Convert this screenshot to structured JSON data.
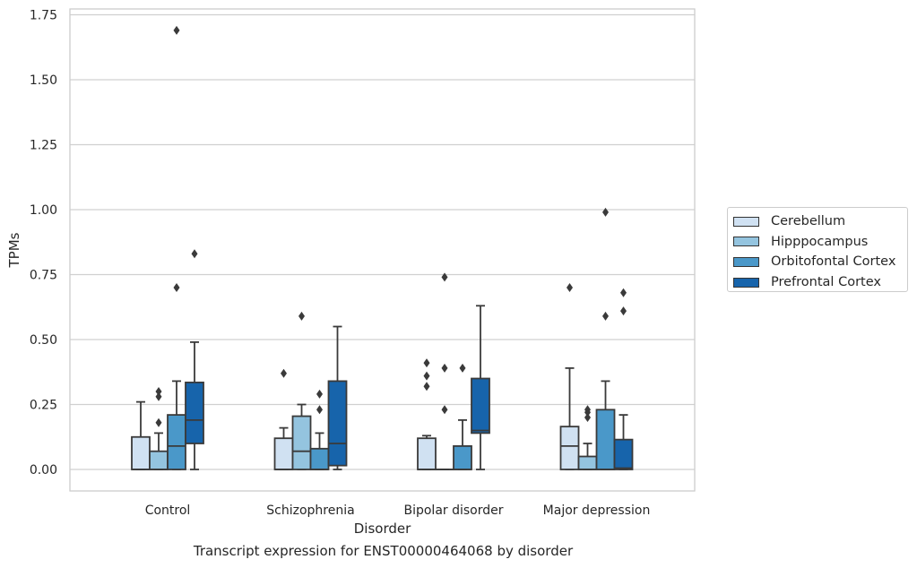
{
  "chart_data": {
    "type": "box",
    "title": "",
    "caption": "Transcript expression for ENST00000464068 by disorder",
    "xlabel": "Disorder",
    "ylabel": "TPMs",
    "ylim": [
      -0.08,
      1.77
    ],
    "yticks": [
      0.0,
      0.25,
      0.5,
      0.75,
      1.0,
      1.25,
      1.5,
      1.75
    ],
    "ytick_labels": [
      "0.00",
      "0.25",
      "0.50",
      "0.75",
      "1.00",
      "1.25",
      "1.50",
      "1.75"
    ],
    "grid": "horizontal",
    "legend_position": "right",
    "categories": [
      "Control",
      "Schizophrenia",
      "Bipolar disorder",
      "Major depression"
    ],
    "series": [
      {
        "name": "Cerebellum",
        "color": "#d0e1f2",
        "boxes": [
          {
            "min": 0.0,
            "q1": 0.0,
            "median": 0.0,
            "q3": 0.125,
            "max": 0.26,
            "outliers": []
          },
          {
            "min": 0.0,
            "q1": 0.0,
            "median": 0.0,
            "q3": 0.12,
            "max": 0.16,
            "outliers": [
              0.37
            ]
          },
          {
            "min": 0.0,
            "q1": 0.0,
            "median": 0.0,
            "q3": 0.12,
            "max": 0.13,
            "outliers": [
              0.32,
              0.36,
              0.41
            ]
          },
          {
            "min": 0.0,
            "q1": 0.0,
            "median": 0.09,
            "q3": 0.165,
            "max": 0.39,
            "outliers": [
              0.7
            ]
          }
        ]
      },
      {
        "name": "Hipppocampus",
        "color": "#94c4df",
        "boxes": [
          {
            "min": 0.0,
            "q1": 0.0,
            "median": 0.0,
            "q3": 0.07,
            "max": 0.14,
            "outliers": [
              0.18,
              0.28,
              0.3
            ]
          },
          {
            "min": 0.0,
            "q1": 0.0,
            "median": 0.07,
            "q3": 0.205,
            "max": 0.25,
            "outliers": [
              0.59
            ]
          },
          {
            "min": 0.0,
            "q1": 0.0,
            "median": 0.0,
            "q3": 0.0,
            "max": 0.0,
            "outliers": [
              0.23,
              0.39,
              0.74
            ]
          },
          {
            "min": 0.0,
            "q1": 0.0,
            "median": 0.0,
            "q3": 0.05,
            "max": 0.1,
            "outliers": [
              0.2,
              0.22,
              0.23
            ]
          }
        ]
      },
      {
        "name": "Orbitofontal Cortex",
        "color": "#4a98c9",
        "boxes": [
          {
            "min": 0.0,
            "q1": 0.0,
            "median": 0.09,
            "q3": 0.21,
            "max": 0.34,
            "outliers": [
              0.7,
              1.69
            ]
          },
          {
            "min": 0.0,
            "q1": 0.0,
            "median": 0.0,
            "q3": 0.08,
            "max": 0.14,
            "outliers": [
              0.23,
              0.29
            ]
          },
          {
            "min": 0.0,
            "q1": 0.0,
            "median": 0.0,
            "q3": 0.09,
            "max": 0.19,
            "outliers": [
              0.39
            ]
          },
          {
            "min": 0.0,
            "q1": 0.0,
            "median": 0.0,
            "q3": 0.23,
            "max": 0.34,
            "outliers": [
              0.59,
              0.99
            ]
          }
        ]
      },
      {
        "name": "Prefrontal Cortex",
        "color": "#1764ab",
        "boxes": [
          {
            "min": 0.0,
            "q1": 0.1,
            "median": 0.19,
            "q3": 0.335,
            "max": 0.49,
            "outliers": [
              0.83
            ]
          },
          {
            "min": 0.0,
            "q1": 0.015,
            "median": 0.1,
            "q3": 0.34,
            "max": 0.55,
            "outliers": []
          },
          {
            "min": 0.0,
            "q1": 0.14,
            "median": 0.15,
            "q3": 0.35,
            "max": 0.63,
            "outliers": []
          },
          {
            "min": 0.0,
            "q1": 0.0,
            "median": 0.005,
            "q3": 0.115,
            "max": 0.21,
            "outliers": [
              0.61,
              0.68
            ]
          }
        ]
      }
    ]
  }
}
